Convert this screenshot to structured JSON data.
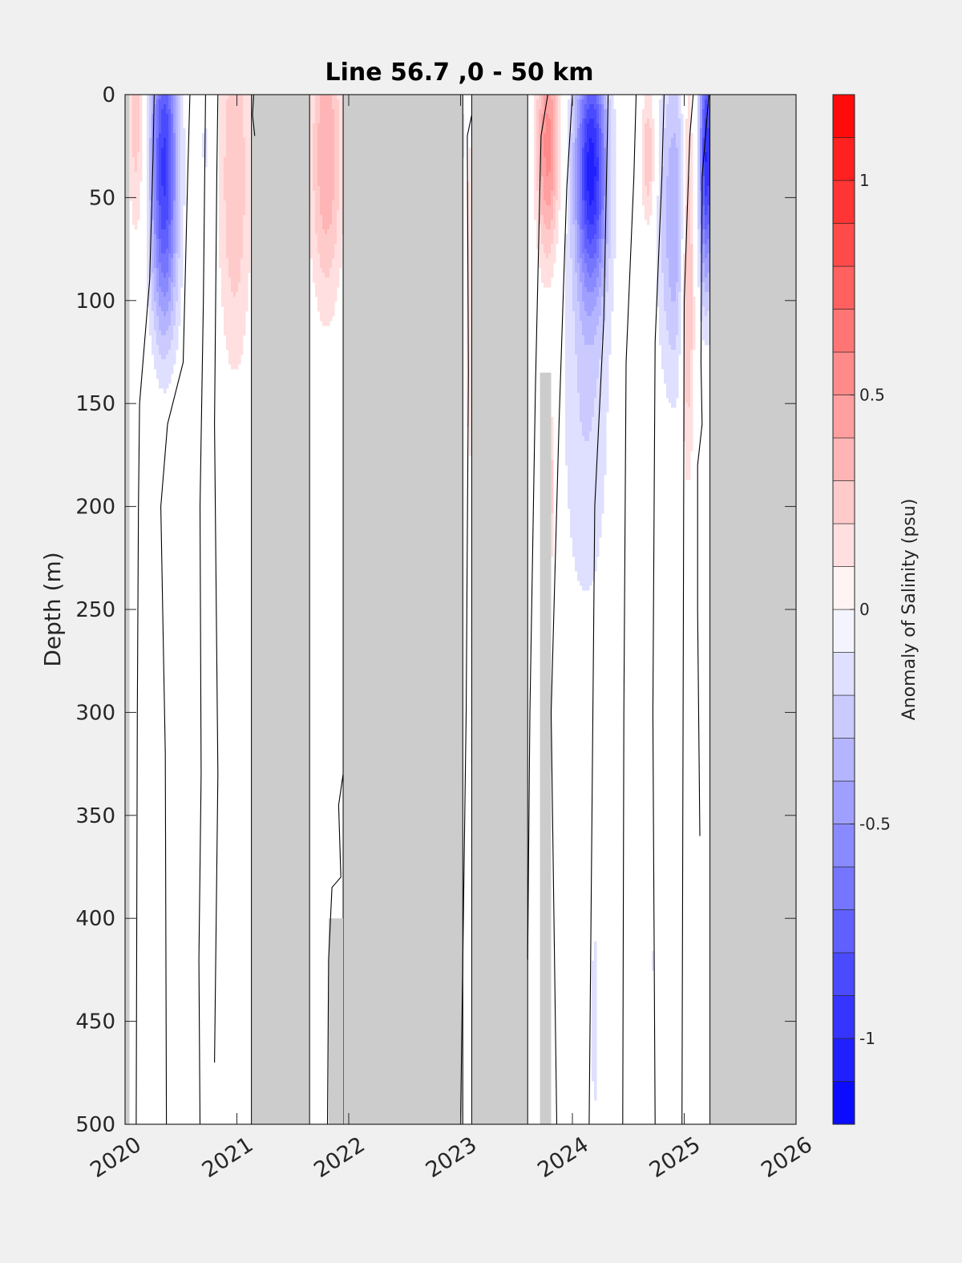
{
  "chart_data": {
    "type": "heatmap",
    "title": "Line 56.7 ,0 - 50 km",
    "ylabel": "Depth (m)",
    "colorbar_label": "Anomaly of Salinity (psu)",
    "xlim": [
      2020,
      2026
    ],
    "ylim": [
      0,
      500
    ],
    "y_reversed": true,
    "xticks": [
      2020,
      2021,
      2022,
      2023,
      2024,
      2025,
      2026
    ],
    "xtick_labels": [
      "2020",
      "2021",
      "2022",
      "2023",
      "2024",
      "2025",
      "2026"
    ],
    "yticks": [
      0,
      50,
      100,
      150,
      200,
      250,
      300,
      350,
      400,
      450,
      500
    ],
    "ytick_labels": [
      "0",
      "50",
      "100",
      "150",
      "200",
      "250",
      "300",
      "350",
      "400",
      "450",
      "500"
    ],
    "color_range": [
      -1.2,
      1.2
    ],
    "color_levels": 24,
    "colorbar_ticks": [
      1,
      0.5,
      0,
      -0.5,
      -1
    ],
    "colorbar_tick_labels": [
      "1",
      "0.5",
      "0",
      "-0.5",
      "-1"
    ],
    "colormap": {
      "low": "#0000ff",
      "mid": "#ffffff",
      "high": "#ff0000"
    },
    "no_data_color": "#cccccc",
    "grid": false,
    "no_data_periods": [
      {
        "x0": 2021.13,
        "x1": 2021.65,
        "d0": 0,
        "d1": 500
      },
      {
        "x0": 2021.95,
        "x1": 2023.02,
        "d0": 0,
        "d1": 500
      },
      {
        "x0": 2023.1,
        "x1": 2023.6,
        "d0": 0,
        "d1": 500
      },
      {
        "x0": 2023.71,
        "x1": 2023.81,
        "d0": 135,
        "d1": 500
      },
      {
        "x0": 2025.23,
        "x1": 2026.0,
        "d0": 0,
        "d1": 500
      },
      {
        "x0": 2021.82,
        "x1": 2021.95,
        "d0": 400,
        "d1": 500
      },
      {
        "x0": 2020.0,
        "x1": 2020.04,
        "d0": 0,
        "d1": 500
      }
    ],
    "anomaly_features": [
      {
        "x": 2020.1,
        "d": 15,
        "wx": 0.07,
        "wd": 55,
        "v": 0.25
      },
      {
        "x": 2020.35,
        "d": 30,
        "wx": 0.12,
        "wd": 70,
        "v": -0.9
      },
      {
        "x": 2020.35,
        "d": 90,
        "wx": 0.12,
        "wd": 45,
        "v": -0.15
      },
      {
        "x": 2020.72,
        "d": 25,
        "wx": 0.07,
        "wd": 30,
        "v": -0.12
      },
      {
        "x": 2020.98,
        "d": 40,
        "wx": 0.14,
        "wd": 90,
        "v": 0.3
      },
      {
        "x": 2021.8,
        "d": 30,
        "wx": 0.14,
        "wd": 70,
        "v": 0.4
      },
      {
        "x": 2023.08,
        "d": 100,
        "wx": 0.04,
        "wd": 120,
        "v": 0.15
      },
      {
        "x": 2023.0,
        "d": 20,
        "wx": 0.03,
        "wd": 40,
        "v": -0.2
      },
      {
        "x": 2023.78,
        "d": 25,
        "wx": 0.1,
        "wd": 55,
        "v": 0.55
      },
      {
        "x": 2023.8,
        "d": 190,
        "wx": 0.04,
        "wd": 40,
        "v": 0.3
      },
      {
        "x": 2024.17,
        "d": 35,
        "wx": 0.14,
        "wd": 60,
        "v": -1.0
      },
      {
        "x": 2024.12,
        "d": 150,
        "wx": 0.22,
        "wd": 110,
        "v": -0.2
      },
      {
        "x": 2024.2,
        "d": 450,
        "wx": 0.04,
        "wd": 60,
        "v": -0.15
      },
      {
        "x": 2024.68,
        "d": 30,
        "wx": 0.06,
        "wd": 35,
        "v": 0.3
      },
      {
        "x": 2024.92,
        "d": 60,
        "wx": 0.15,
        "wd": 80,
        "v": -0.4
      },
      {
        "x": 2025.03,
        "d": 80,
        "wx": 0.06,
        "wd": 90,
        "v": 0.5
      },
      {
        "x": 2025.2,
        "d": 30,
        "wx": 0.06,
        "wd": 60,
        "v": -1.0
      },
      {
        "x": 2024.72,
        "d": 420,
        "wx": 0.03,
        "wd": 8,
        "v": -0.15
      }
    ],
    "zero_contours": [
      [
        [
          2020.1,
          500
        ],
        [
          2020.11,
          300
        ],
        [
          2020.12,
          200
        ],
        [
          2020.13,
          150
        ],
        [
          2020.22,
          90
        ],
        [
          2020.25,
          30
        ],
        [
          2020.26,
          0
        ]
      ],
      [
        [
          2020.37,
          500
        ],
        [
          2020.36,
          320
        ],
        [
          2020.32,
          200
        ],
        [
          2020.38,
          160
        ],
        [
          2020.52,
          130
        ],
        [
          2020.56,
          40
        ],
        [
          2020.58,
          0
        ]
      ],
      [
        [
          2020.67,
          500
        ],
        [
          2020.66,
          420
        ],
        [
          2020.68,
          330
        ],
        [
          2020.67,
          200
        ],
        [
          2020.7,
          100
        ],
        [
          2020.72,
          0
        ]
      ],
      [
        [
          2020.8,
          470
        ],
        [
          2020.83,
          330
        ],
        [
          2020.8,
          160
        ],
        [
          2020.82,
          40
        ],
        [
          2020.83,
          0
        ]
      ],
      [
        [
          2021.16,
          20
        ],
        [
          2021.14,
          10
        ],
        [
          2021.15,
          0
        ]
      ],
      [
        [
          2021.81,
          500
        ],
        [
          2021.82,
          420
        ],
        [
          2021.85,
          385
        ],
        [
          2021.93,
          380
        ],
        [
          2021.91,
          345
        ],
        [
          2021.95,
          330
        ]
      ],
      [
        [
          2023.0,
          500
        ],
        [
          2023.05,
          300
        ],
        [
          2023.07,
          135
        ],
        [
          2023.06,
          20
        ],
        [
          2023.1,
          10
        ]
      ],
      [
        [
          2023.6,
          420
        ],
        [
          2023.62,
          300
        ],
        [
          2023.67,
          140
        ],
        [
          2023.72,
          20
        ],
        [
          2023.78,
          0
        ]
      ],
      [
        [
          2023.86,
          500
        ],
        [
          2023.81,
          300
        ],
        [
          2023.88,
          160
        ],
        [
          2023.95,
          45
        ],
        [
          2024.0,
          0
        ]
      ],
      [
        [
          2024.15,
          500
        ],
        [
          2024.18,
          320
        ],
        [
          2024.2,
          200
        ],
        [
          2024.28,
          110
        ],
        [
          2024.32,
          0
        ]
      ],
      [
        [
          2024.45,
          500
        ],
        [
          2024.46,
          300
        ],
        [
          2024.48,
          130
        ],
        [
          2024.55,
          40
        ],
        [
          2024.57,
          0
        ]
      ],
      [
        [
          2024.74,
          500
        ],
        [
          2024.72,
          300
        ],
        [
          2024.74,
          120
        ],
        [
          2024.8,
          40
        ],
        [
          2024.82,
          0
        ]
      ],
      [
        [
          2024.98,
          500
        ],
        [
          2024.99,
          300
        ],
        [
          2025.0,
          100
        ],
        [
          2025.05,
          20
        ],
        [
          2025.08,
          0
        ]
      ],
      [
        [
          2025.14,
          360
        ],
        [
          2025.12,
          250
        ],
        [
          2025.12,
          180
        ],
        [
          2025.16,
          160
        ],
        [
          2025.15,
          130
        ],
        [
          2025.16,
          40
        ],
        [
          2025.22,
          0
        ]
      ]
    ]
  }
}
